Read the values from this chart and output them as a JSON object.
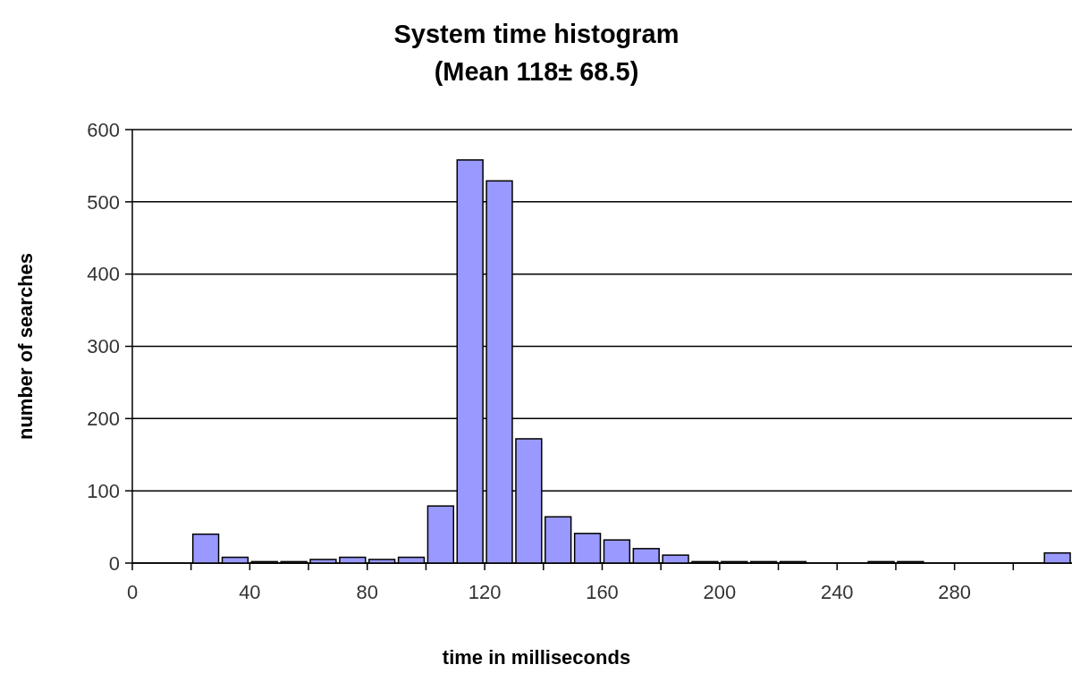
{
  "chart_data": {
    "type": "histogram",
    "title": "System time histogram\n(Mean 118± 68.5)",
    "xlabel": "time in milliseconds",
    "ylabel": "number of searches",
    "bins": [
      0,
      10,
      20,
      30,
      40,
      50,
      60,
      70,
      80,
      90,
      100,
      110,
      120,
      130,
      140,
      150,
      160,
      170,
      180,
      190,
      200,
      210,
      220,
      230,
      240,
      250,
      260,
      270,
      280,
      290,
      300,
      310,
      320
    ],
    "values": [
      0,
      0,
      40,
      8,
      2,
      2,
      5,
      8,
      5,
      8,
      79,
      558,
      529,
      172,
      64,
      41,
      32,
      20,
      11,
      2,
      2,
      2,
      2,
      0,
      0,
      2,
      2,
      0,
      0,
      0,
      0,
      14
    ],
    "color": "#9999ff",
    "xlim": [
      0,
      320
    ],
    "xticks": [
      {
        "value": 0,
        "label": "0"
      },
      {
        "value": 20,
        "label": null
      },
      {
        "value": 40,
        "label": "40"
      },
      {
        "value": 60,
        "label": null
      },
      {
        "value": 80,
        "label": "80"
      },
      {
        "value": 100,
        "label": null
      },
      {
        "value": 120,
        "label": "120"
      },
      {
        "value": 140,
        "label": null
      },
      {
        "value": 160,
        "label": "160"
      },
      {
        "value": 180,
        "label": null
      },
      {
        "value": 200,
        "label": "200"
      },
      {
        "value": 220,
        "label": null
      },
      {
        "value": 240,
        "label": "240"
      },
      {
        "value": 260,
        "label": null
      },
      {
        "value": 280,
        "label": "280"
      },
      {
        "value": 300,
        "label": null
      }
    ],
    "ylim": [
      0,
      600
    ],
    "yticks": [
      0,
      100,
      200,
      300,
      400,
      500,
      600
    ],
    "grid": "y"
  }
}
